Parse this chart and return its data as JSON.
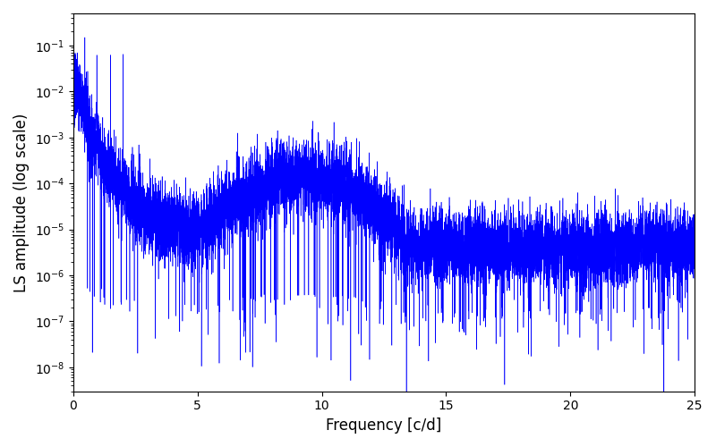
{
  "xlabel": "Frequency [c/d]",
  "ylabel": "LS amplitude (log scale)",
  "xlim": [
    0,
    25
  ],
  "ylim_low": 3e-09,
  "ylim_high": 0.5,
  "line_color": "#0000ff",
  "line_width": 0.4,
  "figsize": [
    8.0,
    5.0
  ],
  "dpi": 100,
  "n_points": 15000,
  "seed": 7
}
